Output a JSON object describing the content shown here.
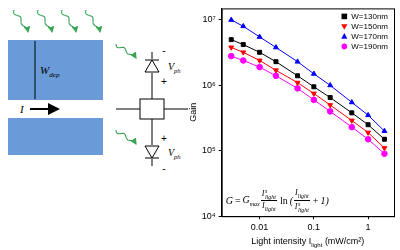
{
  "diagram": {
    "device": {
      "depletion_label": {
        "base": "W",
        "sub": "dep"
      },
      "current_label": "I"
    },
    "circuit": {
      "photodiodes": [
        {
          "voltage": {
            "base": "V",
            "sub": "ph"
          },
          "top_sign": "-",
          "bottom_sign": "+"
        },
        {
          "voltage": {
            "base": "V",
            "sub": "ph"
          },
          "top_sign": "+",
          "bottom_sign": "-"
        }
      ]
    }
  },
  "chart_data": {
    "type": "line",
    "y_label": "Gain",
    "x_label": {
      "base": "Light intensity I",
      "sub": "light",
      "tail": " (mW/cm²)"
    },
    "log": true,
    "grid": false,
    "legend": "top-right",
    "x": [
      0.003,
      0.005,
      0.01,
      0.02,
      0.05,
      0.1,
      0.2,
      0.5,
      1,
      2
    ],
    "series": [
      {
        "name": "W=130nm",
        "color": "#000000",
        "marker": "square",
        "line_style": "solid",
        "values": [
          5000000,
          4200000,
          3200000,
          2300000,
          1400000,
          950000,
          650000,
          380000,
          250000,
          150000
        ]
      },
      {
        "name": "W=150nm",
        "color": "#ff0000",
        "marker": "triangle_down",
        "line_style": "solid",
        "values": [
          3800000,
          3200000,
          2400000,
          1700000,
          1100000,
          750000,
          500000,
          290000,
          190000,
          110000
        ]
      },
      {
        "name": "W=170nm",
        "color": "#0000ff",
        "marker": "triangle",
        "line_style": "solid",
        "values": [
          10000000,
          8000000,
          5500000,
          3800000,
          2300000,
          1500000,
          1000000,
          550000,
          350000,
          200000
        ]
      },
      {
        "name": "W=190nm",
        "color": "#ff00ff",
        "marker": "circle",
        "line_style": "solid",
        "values": [
          2800000,
          2400000,
          1900000,
          1400000,
          900000,
          600000,
          400000,
          230000,
          150000,
          90000
        ]
      }
    ],
    "xlim": [
      0.002,
      3
    ],
    "xticks": [
      0.01,
      0.1,
      1
    ],
    "ylim": [
      10000,
      15000000
    ],
    "yticks": [
      {
        "value": 10000,
        "label": "10⁴"
      },
      {
        "value": 100000,
        "label": "10⁵"
      },
      {
        "value": 1000000,
        "label": "10⁶"
      },
      {
        "value": 10000000,
        "label": "10⁷"
      }
    ],
    "formula": {
      "lhs": "G",
      "equals": "=",
      "factor": {
        "base": "G",
        "sub": "max"
      },
      "ratio": {
        "num": {
          "base": "I",
          "sup": "s",
          "sub": "light"
        },
        "den": {
          "base": "I",
          "sub": "light"
        }
      },
      "function": "ln",
      "open": "(",
      "arg": {
        "num": {
          "base": "I",
          "sub": "light"
        },
        "den": {
          "base": "I",
          "sup": "s",
          "sub": "light"
        }
      },
      "plus": "+",
      "one": "1",
      "close": ")"
    }
  }
}
